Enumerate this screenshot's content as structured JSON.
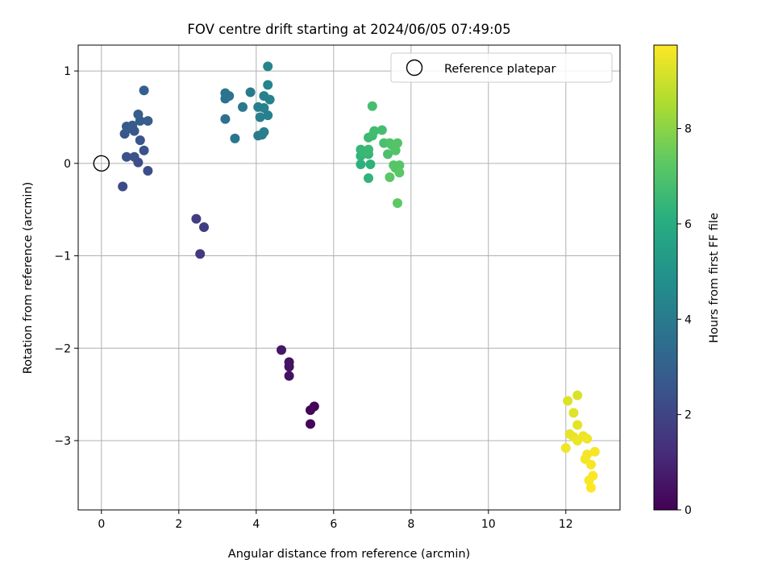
{
  "chart_data": {
    "type": "scatter",
    "title": "FOV centre drift starting at 2024/06/05 07:49:05",
    "xlabel": "Angular distance from reference (arcmin)",
    "ylabel": "Rotation from reference (arcmin)",
    "xlim": [
      -0.6,
      13.4
    ],
    "ylim": [
      -3.75,
      1.28
    ],
    "xticks": [
      0,
      2,
      4,
      6,
      8,
      10,
      12
    ],
    "yticks": [
      -3,
      -2,
      -1,
      0,
      1
    ],
    "grid": true,
    "legend": {
      "position": "top-right",
      "entries": [
        "Reference platepar"
      ]
    },
    "reference_point": {
      "label": "Reference platepar",
      "x": 0,
      "y": 0
    },
    "colorbar": {
      "label": "Hours from first FF file",
      "range": [
        0,
        9.75
      ],
      "ticks": [
        0,
        2,
        4,
        6,
        8
      ],
      "colormap": "viridis"
    },
    "points": [
      {
        "x": 5.4,
        "y": -2.82,
        "hours": 0.1
      },
      {
        "x": 5.4,
        "y": -2.67,
        "hours": 0.1
      },
      {
        "x": 5.5,
        "y": -2.63,
        "hours": 0.15
      },
      {
        "x": 4.85,
        "y": -2.3,
        "hours": 0.45
      },
      {
        "x": 4.85,
        "y": -2.2,
        "hours": 0.45
      },
      {
        "x": 4.85,
        "y": -2.15,
        "hours": 0.5
      },
      {
        "x": 4.65,
        "y": -2.02,
        "hours": 0.6
      },
      {
        "x": 2.55,
        "y": -0.98,
        "hours": 1.6
      },
      {
        "x": 2.65,
        "y": -0.69,
        "hours": 1.7
      },
      {
        "x": 2.45,
        "y": -0.6,
        "hours": 1.75
      },
      {
        "x": 0.55,
        "y": -0.25,
        "hours": 2.2
      },
      {
        "x": 1.2,
        "y": -0.08,
        "hours": 2.3
      },
      {
        "x": 0.95,
        "y": 0.01,
        "hours": 2.35
      },
      {
        "x": 0.65,
        "y": 0.07,
        "hours": 2.4
      },
      {
        "x": 0.85,
        "y": 0.07,
        "hours": 2.45
      },
      {
        "x": 1.1,
        "y": 0.14,
        "hours": 2.5
      },
      {
        "x": 1.0,
        "y": 0.25,
        "hours": 2.55
      },
      {
        "x": 0.6,
        "y": 0.32,
        "hours": 2.6
      },
      {
        "x": 0.85,
        "y": 0.35,
        "hours": 2.65
      },
      {
        "x": 0.7,
        "y": 0.38,
        "hours": 2.7
      },
      {
        "x": 0.65,
        "y": 0.4,
        "hours": 2.75
      },
      {
        "x": 0.8,
        "y": 0.41,
        "hours": 2.8
      },
      {
        "x": 1.2,
        "y": 0.46,
        "hours": 2.85
      },
      {
        "x": 1.0,
        "y": 0.46,
        "hours": 2.9
      },
      {
        "x": 0.95,
        "y": 0.53,
        "hours": 2.95
      },
      {
        "x": 1.1,
        "y": 0.79,
        "hours": 3.0
      },
      {
        "x": 3.2,
        "y": 0.48,
        "hours": 3.6
      },
      {
        "x": 3.2,
        "y": 0.7,
        "hours": 3.65
      },
      {
        "x": 3.3,
        "y": 0.73,
        "hours": 3.7
      },
      {
        "x": 3.2,
        "y": 0.76,
        "hours": 3.75
      },
      {
        "x": 3.45,
        "y": 0.27,
        "hours": 3.8
      },
      {
        "x": 3.65,
        "y": 0.61,
        "hours": 3.85
      },
      {
        "x": 3.85,
        "y": 0.77,
        "hours": 3.95
      },
      {
        "x": 4.05,
        "y": 0.3,
        "hours": 4.05
      },
      {
        "x": 4.15,
        "y": 0.31,
        "hours": 4.1
      },
      {
        "x": 4.2,
        "y": 0.34,
        "hours": 4.15
      },
      {
        "x": 4.1,
        "y": 0.5,
        "hours": 4.15
      },
      {
        "x": 4.3,
        "y": 0.52,
        "hours": 4.2
      },
      {
        "x": 4.05,
        "y": 0.61,
        "hours": 4.2
      },
      {
        "x": 4.2,
        "y": 0.6,
        "hours": 4.25
      },
      {
        "x": 4.2,
        "y": 0.73,
        "hours": 4.25
      },
      {
        "x": 4.35,
        "y": 0.69,
        "hours": 4.3
      },
      {
        "x": 4.3,
        "y": 0.85,
        "hours": 4.35
      },
      {
        "x": 4.3,
        "y": 1.05,
        "hours": 4.4
      },
      {
        "x": 6.7,
        "y": -0.01,
        "hours": 6.2
      },
      {
        "x": 6.95,
        "y": -0.01,
        "hours": 6.25
      },
      {
        "x": 6.9,
        "y": -0.16,
        "hours": 6.3
      },
      {
        "x": 6.7,
        "y": 0.08,
        "hours": 6.35
      },
      {
        "x": 6.9,
        "y": 0.1,
        "hours": 6.4
      },
      {
        "x": 6.7,
        "y": 0.15,
        "hours": 6.45
      },
      {
        "x": 6.8,
        "y": 0.12,
        "hours": 6.5
      },
      {
        "x": 6.9,
        "y": 0.15,
        "hours": 6.55
      },
      {
        "x": 6.9,
        "y": 0.28,
        "hours": 6.6
      },
      {
        "x": 7.0,
        "y": 0.3,
        "hours": 6.65
      },
      {
        "x": 7.05,
        "y": 0.35,
        "hours": 6.7
      },
      {
        "x": 7.25,
        "y": 0.36,
        "hours": 6.75
      },
      {
        "x": 7.0,
        "y": 0.62,
        "hours": 6.8
      },
      {
        "x": 7.3,
        "y": 0.22,
        "hours": 6.85
      },
      {
        "x": 7.4,
        "y": 0.1,
        "hours": 6.9
      },
      {
        "x": 7.45,
        "y": 0.22,
        "hours": 6.95
      },
      {
        "x": 7.5,
        "y": 0.2,
        "hours": 7.0
      },
      {
        "x": 7.6,
        "y": 0.14,
        "hours": 7.05
      },
      {
        "x": 7.65,
        "y": 0.22,
        "hours": 7.1
      },
      {
        "x": 7.55,
        "y": -0.02,
        "hours": 7.1
      },
      {
        "x": 7.6,
        "y": -0.05,
        "hours": 7.15
      },
      {
        "x": 7.7,
        "y": -0.02,
        "hours": 7.15
      },
      {
        "x": 7.7,
        "y": -0.1,
        "hours": 7.2
      },
      {
        "x": 7.45,
        "y": -0.15,
        "hours": 7.2
      },
      {
        "x": 7.65,
        "y": -0.43,
        "hours": 7.25
      },
      {
        "x": 12.3,
        "y": -2.51,
        "hours": 9.2
      },
      {
        "x": 12.05,
        "y": -2.57,
        "hours": 9.25
      },
      {
        "x": 12.2,
        "y": -2.7,
        "hours": 9.3
      },
      {
        "x": 12.3,
        "y": -2.83,
        "hours": 9.35
      },
      {
        "x": 12.1,
        "y": -2.93,
        "hours": 9.4
      },
      {
        "x": 12.2,
        "y": -2.96,
        "hours": 9.45
      },
      {
        "x": 12.45,
        "y": -2.95,
        "hours": 9.5
      },
      {
        "x": 12.3,
        "y": -3.0,
        "hours": 9.5
      },
      {
        "x": 12.55,
        "y": -2.98,
        "hours": 9.55
      },
      {
        "x": 12.0,
        "y": -3.08,
        "hours": 9.55
      },
      {
        "x": 12.55,
        "y": -3.15,
        "hours": 9.6
      },
      {
        "x": 12.5,
        "y": -3.2,
        "hours": 9.6
      },
      {
        "x": 12.75,
        "y": -3.12,
        "hours": 9.65
      },
      {
        "x": 12.65,
        "y": -3.26,
        "hours": 9.65
      },
      {
        "x": 12.7,
        "y": -3.38,
        "hours": 9.7
      },
      {
        "x": 12.6,
        "y": -3.43,
        "hours": 9.7
      },
      {
        "x": 12.65,
        "y": -3.51,
        "hours": 9.75
      }
    ]
  }
}
